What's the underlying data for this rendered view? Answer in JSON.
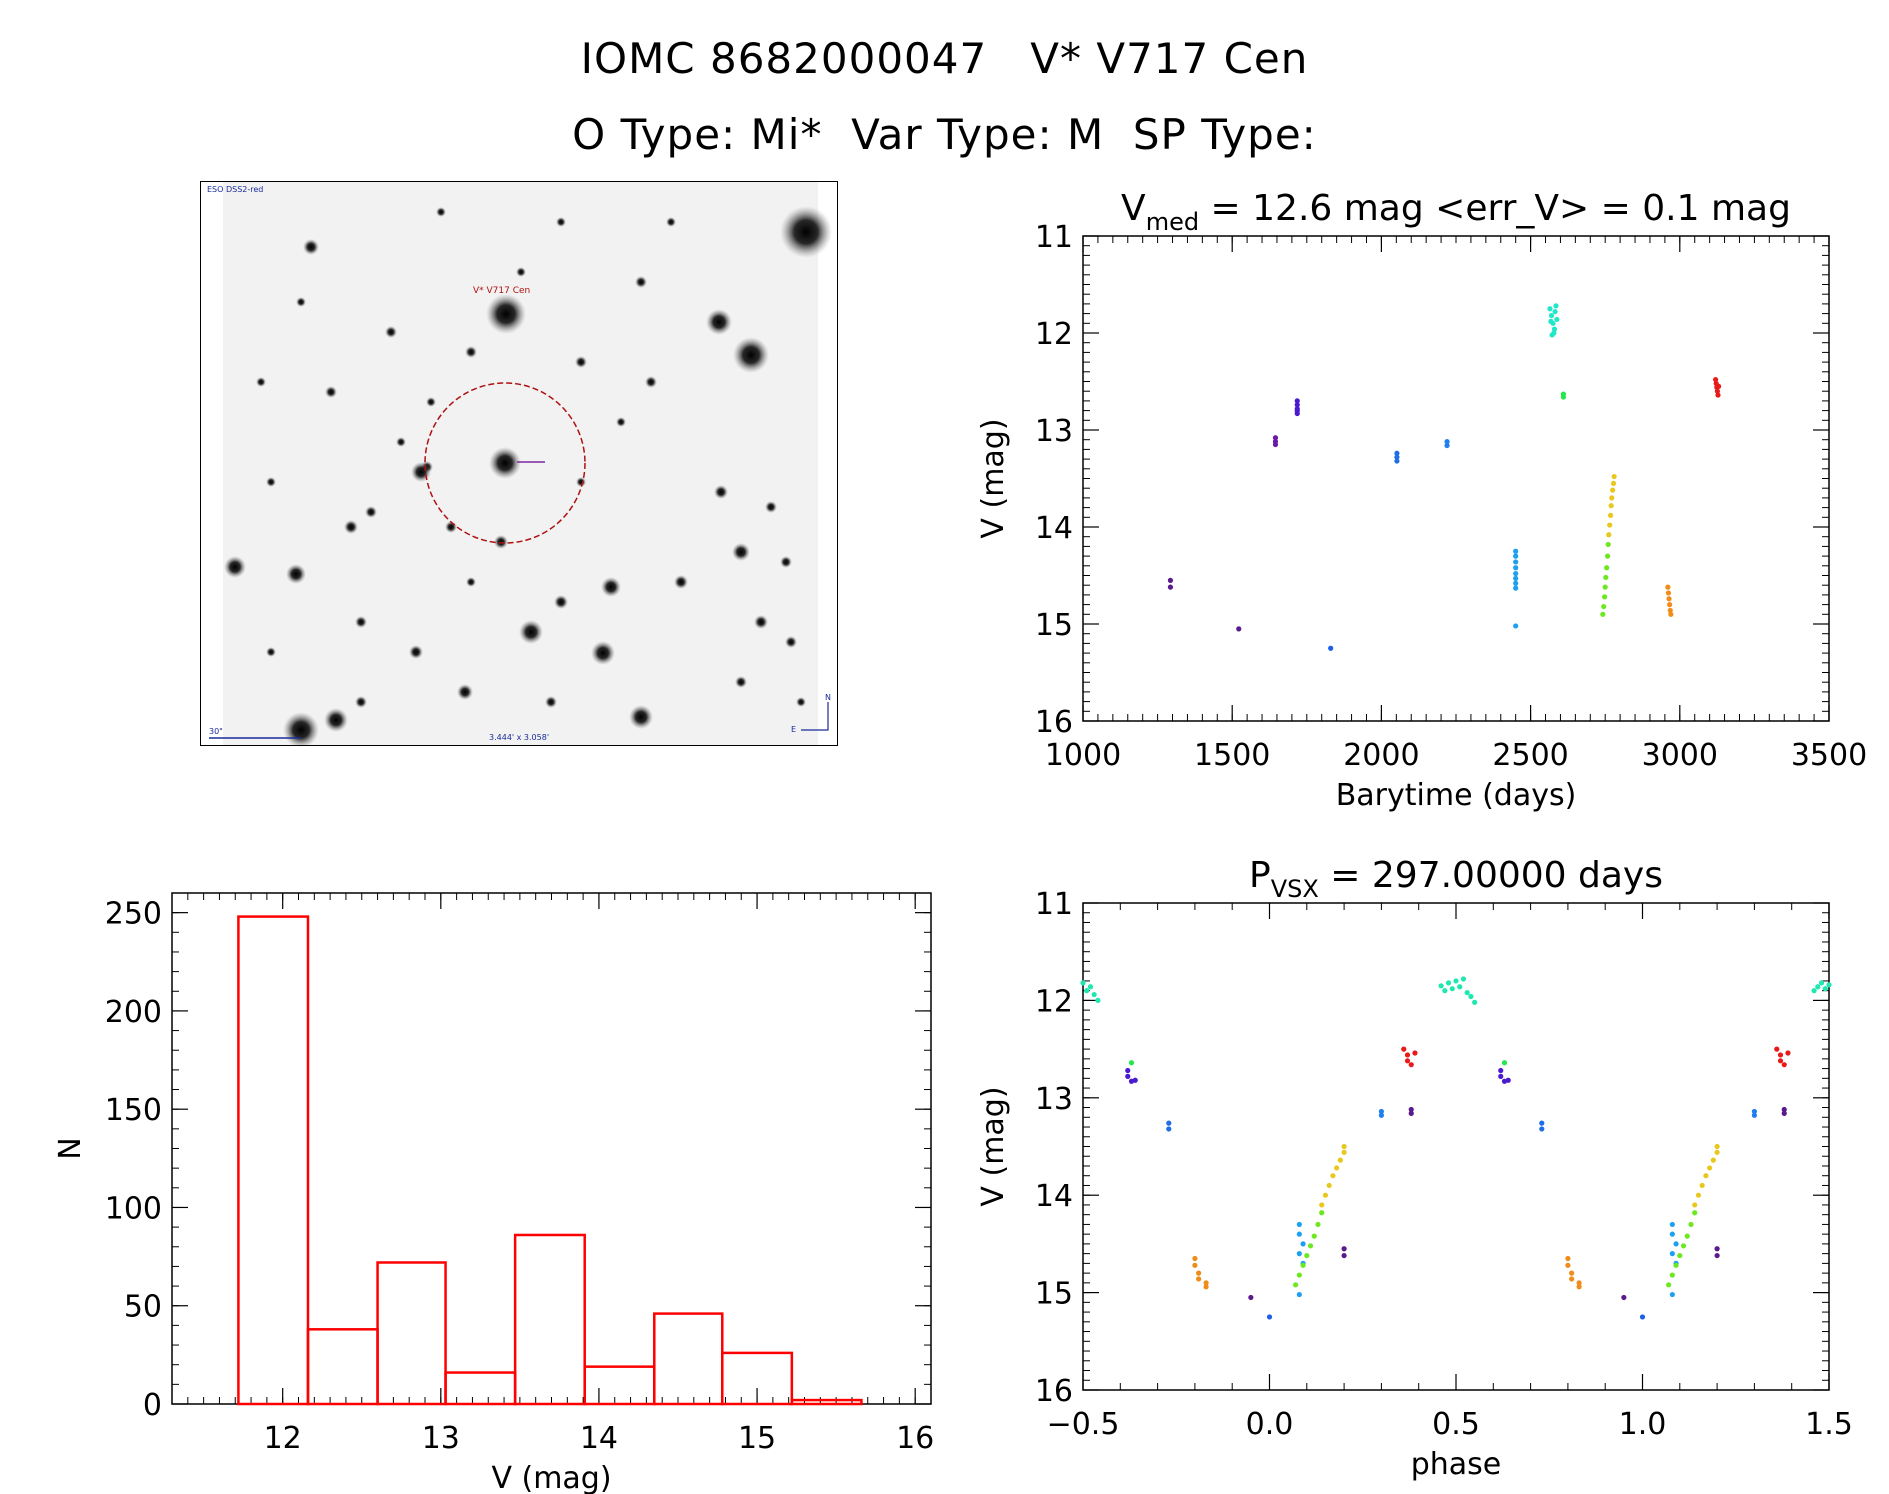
{
  "header": {
    "title_line1": "IOMC 8682000047   V* V717 Cen",
    "title_line2": "O Type: Mi*  Var Type: M  SP Type:"
  },
  "sky_image": {
    "survey_label": "ESO DSS2-red",
    "target_label": "V* V717 Cen",
    "scale_label": "30\"",
    "fov_label": "3.444' x 3.058'",
    "compass_north": "N",
    "compass_east": "E"
  },
  "chart_data": [
    {
      "id": "lightcurve",
      "type": "scatter",
      "title_main": "V",
      "title_sub": "med",
      "title_rest": " = 12.6 mag <err_V> = 0.1 mag",
      "xlabel": "Barytime (days)",
      "ylabel": "V (mag)",
      "xlim": [
        1000,
        3500
      ],
      "ylim": [
        11,
        16
      ],
      "y_inverted": true,
      "xticks": [
        1000,
        1500,
        2000,
        2500,
        3000,
        3500
      ],
      "yticks": [
        11,
        12,
        13,
        14,
        15,
        16
      ],
      "groups": [
        {
          "color": "#5a1a8c",
          "points": [
            [
              1293,
              14.55
            ],
            [
              1293,
              14.62
            ]
          ]
        },
        {
          "color": "#5a1a8c",
          "points": [
            [
              1522,
              15.05
            ]
          ]
        },
        {
          "color": "#6a1aa8",
          "points": [
            [
              1645,
              13.08
            ],
            [
              1645,
              13.12
            ],
            [
              1645,
              13.15
            ]
          ]
        },
        {
          "color": "#4a1ad0",
          "points": [
            [
              1718,
              12.7
            ],
            [
              1718,
              12.74
            ],
            [
              1718,
              12.78
            ],
            [
              1718,
              12.8
            ],
            [
              1718,
              12.83
            ]
          ]
        },
        {
          "color": "#1f5ee8",
          "points": [
            [
              1830,
              15.25
            ]
          ]
        },
        {
          "color": "#1f6ee8",
          "points": [
            [
              2052,
              13.24
            ],
            [
              2052,
              13.28
            ],
            [
              2052,
              13.32
            ]
          ]
        },
        {
          "color": "#1f7ef0",
          "points": [
            [
              2220,
              13.12
            ],
            [
              2220,
              13.16
            ]
          ]
        },
        {
          "color": "#1ea0f0",
          "points": [
            [
              2450,
              14.25
            ],
            [
              2450,
              14.3
            ],
            [
              2450,
              14.36
            ],
            [
              2450,
              14.42
            ],
            [
              2450,
              14.48
            ],
            [
              2450,
              14.53
            ],
            [
              2450,
              14.58
            ],
            [
              2450,
              14.63
            ],
            [
              2450,
              15.02
            ]
          ]
        },
        {
          "color": "#1ee8c8",
          "points": [
            [
              2565,
              11.75
            ],
            [
              2570,
              11.82
            ],
            [
              2575,
              11.9
            ],
            [
              2580,
              11.96
            ],
            [
              2585,
              11.72
            ],
            [
              2568,
              11.88
            ],
            [
              2578,
              12.0
            ],
            [
              2582,
              11.78
            ],
            [
              2572,
              12.02
            ],
            [
              2588,
              11.86
            ]
          ]
        },
        {
          "color": "#22e84a",
          "points": [
            [
              2610,
              12.63
            ],
            [
              2610,
              12.66
            ]
          ]
        },
        {
          "color": "#6ee81e",
          "points": [
            [
              2742,
              14.9
            ],
            [
              2745,
              14.82
            ],
            [
              2748,
              14.72
            ],
            [
              2750,
              14.62
            ],
            [
              2752,
              14.52
            ],
            [
              2755,
              14.42
            ],
            [
              2758,
              14.3
            ],
            [
              2760,
              14.18
            ]
          ]
        },
        {
          "color": "#e8c81e",
          "points": [
            [
              2762,
              14.08
            ],
            [
              2765,
              13.98
            ],
            [
              2768,
              13.88
            ],
            [
              2770,
              13.78
            ],
            [
              2772,
              13.7
            ],
            [
              2775,
              13.62
            ],
            [
              2778,
              13.55
            ],
            [
              2780,
              13.48
            ]
          ]
        },
        {
          "color": "#f08c1a",
          "points": [
            [
              2960,
              14.62
            ],
            [
              2962,
              14.68
            ],
            [
              2964,
              14.74
            ],
            [
              2966,
              14.8
            ],
            [
              2968,
              14.86
            ],
            [
              2970,
              14.9
            ]
          ]
        },
        {
          "color": "#e81a1a",
          "points": [
            [
              3120,
              12.48
            ],
            [
              3122,
              12.52
            ],
            [
              3124,
              12.56
            ],
            [
              3126,
              12.6
            ],
            [
              3128,
              12.64
            ],
            [
              3130,
              12.55
            ]
          ]
        }
      ]
    },
    {
      "id": "histogram",
      "type": "bar",
      "xlabel": "V (mag)",
      "ylabel": "N",
      "xlim": [
        11.3,
        16.1
      ],
      "ylim": [
        0,
        260
      ],
      "xticks": [
        12,
        13,
        14,
        15,
        16
      ],
      "yticks": [
        0,
        50,
        100,
        150,
        200,
        250
      ],
      "bins": [
        {
          "x0": 11.72,
          "x1": 12.16,
          "n": 248
        },
        {
          "x0": 12.16,
          "x1": 12.6,
          "n": 38
        },
        {
          "x0": 12.6,
          "x1": 13.03,
          "n": 72
        },
        {
          "x0": 13.03,
          "x1": 13.47,
          "n": 16
        },
        {
          "x0": 13.47,
          "x1": 13.91,
          "n": 86
        },
        {
          "x0": 13.91,
          "x1": 14.35,
          "n": 19
        },
        {
          "x0": 14.35,
          "x1": 14.78,
          "n": 46
        },
        {
          "x0": 14.78,
          "x1": 15.22,
          "n": 26
        },
        {
          "x0": 15.22,
          "x1": 15.66,
          "n": 2
        }
      ],
      "color": "#ff0000"
    },
    {
      "id": "phased",
      "type": "scatter",
      "title_main": "P",
      "title_sub": "VSX",
      "title_rest": " = 297.00000 days",
      "xlabel": "phase",
      "ylabel": "V (mag)",
      "xlim": [
        -0.5,
        1.5
      ],
      "ylim": [
        11,
        16
      ],
      "y_inverted": true,
      "xticks": [
        -0.5,
        0.0,
        0.5,
        1.0,
        1.5
      ],
      "yticks": [
        11,
        12,
        13,
        14,
        15,
        16
      ],
      "xtick_labels": [
        "−0.5",
        "0.0",
        "0.5",
        "1.0",
        "1.5"
      ],
      "groups": [
        {
          "color": "#1ee8b0",
          "points": [
            [
              0.46,
              11.85
            ],
            [
              0.47,
              11.9
            ],
            [
              0.48,
              11.82
            ],
            [
              0.49,
              11.88
            ],
            [
              0.5,
              11.8
            ],
            [
              0.51,
              11.86
            ],
            [
              0.52,
              11.78
            ],
            [
              0.53,
              11.92
            ],
            [
              0.54,
              11.96
            ],
            [
              0.55,
              12.02
            ],
            [
              -0.5,
              11.82
            ],
            [
              -0.49,
              11.9
            ],
            [
              -0.48,
              11.86
            ],
            [
              -0.47,
              11.94
            ],
            [
              -0.46,
              12.0
            ],
            [
              1.46,
              11.9
            ],
            [
              1.47,
              11.86
            ],
            [
              1.48,
              11.82
            ],
            [
              1.49,
              11.88
            ],
            [
              1.5,
              11.84
            ]
          ]
        },
        {
          "color": "#22e84a",
          "points": [
            [
              -0.37,
              12.64
            ],
            [
              0.63,
              12.64
            ]
          ]
        },
        {
          "color": "#4a1ad0",
          "points": [
            [
              -0.38,
              12.72
            ],
            [
              -0.38,
              12.78
            ],
            [
              -0.37,
              12.83
            ],
            [
              -0.36,
              12.82
            ],
            [
              0.62,
              12.72
            ],
            [
              0.62,
              12.78
            ],
            [
              0.63,
              12.83
            ],
            [
              0.64,
              12.82
            ]
          ]
        },
        {
          "color": "#1f6ee8",
          "points": [
            [
              -0.27,
              13.26
            ],
            [
              -0.27,
              13.32
            ],
            [
              0.73,
              13.26
            ],
            [
              0.73,
              13.32
            ]
          ]
        },
        {
          "color": "#f08c1a",
          "points": [
            [
              -0.2,
              14.65
            ],
            [
              -0.2,
              14.72
            ],
            [
              -0.19,
              14.8
            ],
            [
              -0.19,
              14.86
            ],
            [
              -0.17,
              14.9
            ],
            [
              -0.17,
              14.94
            ],
            [
              0.8,
              14.65
            ],
            [
              0.8,
              14.72
            ],
            [
              0.81,
              14.8
            ],
            [
              0.81,
              14.86
            ],
            [
              0.83,
              14.9
            ],
            [
              0.83,
              14.94
            ]
          ]
        },
        {
          "color": "#5a1a8c",
          "points": [
            [
              -0.05,
              15.05
            ],
            [
              0.95,
              15.05
            ],
            [
              0.2,
              14.55
            ],
            [
              0.2,
              14.62
            ],
            [
              1.2,
              14.55
            ],
            [
              1.2,
              14.62
            ],
            [
              0.38,
              13.12
            ],
            [
              0.38,
              13.16
            ],
            [
              1.38,
              13.12
            ],
            [
              1.38,
              13.16
            ]
          ]
        },
        {
          "color": "#1f5ee8",
          "points": [
            [
              0.0,
              15.25
            ],
            [
              1.0,
              15.25
            ]
          ]
        },
        {
          "color": "#1f7ef0",
          "points": [
            [
              0.3,
              13.14
            ],
            [
              0.3,
              13.18
            ],
            [
              1.3,
              13.14
            ],
            [
              1.3,
              13.18
            ]
          ]
        },
        {
          "color": "#1ea0f0",
          "points": [
            [
              0.08,
              14.3
            ],
            [
              0.08,
              14.4
            ],
            [
              0.09,
              14.5
            ],
            [
              0.08,
              14.6
            ],
            [
              0.09,
              14.7
            ],
            [
              0.08,
              15.02
            ],
            [
              1.08,
              14.3
            ],
            [
              1.08,
              14.4
            ],
            [
              1.09,
              14.5
            ],
            [
              1.08,
              14.6
            ],
            [
              1.09,
              14.7
            ],
            [
              1.08,
              15.02
            ]
          ]
        },
        {
          "color": "#6ee81e",
          "points": [
            [
              0.07,
              14.92
            ],
            [
              0.08,
              14.82
            ],
            [
              0.09,
              14.72
            ],
            [
              0.1,
              14.62
            ],
            [
              0.11,
              14.52
            ],
            [
              0.12,
              14.42
            ],
            [
              0.13,
              14.3
            ],
            [
              0.14,
              14.18
            ],
            [
              1.07,
              14.92
            ],
            [
              1.08,
              14.82
            ],
            [
              1.09,
              14.72
            ],
            [
              1.1,
              14.62
            ],
            [
              1.11,
              14.52
            ],
            [
              1.12,
              14.42
            ],
            [
              1.13,
              14.3
            ],
            [
              1.14,
              14.18
            ]
          ]
        },
        {
          "color": "#e8c81e",
          "points": [
            [
              0.14,
              14.1
            ],
            [
              0.15,
              14.0
            ],
            [
              0.16,
              13.9
            ],
            [
              0.17,
              13.8
            ],
            [
              0.18,
              13.72
            ],
            [
              0.19,
              13.64
            ],
            [
              0.2,
              13.56
            ],
            [
              0.2,
              13.5
            ],
            [
              1.14,
              14.1
            ],
            [
              1.15,
              14.0
            ],
            [
              1.16,
              13.9
            ],
            [
              1.17,
              13.8
            ],
            [
              1.18,
              13.72
            ],
            [
              1.19,
              13.64
            ],
            [
              1.2,
              13.56
            ],
            [
              1.2,
              13.5
            ]
          ]
        },
        {
          "color": "#e81a1a",
          "points": [
            [
              0.36,
              12.5
            ],
            [
              0.37,
              12.56
            ],
            [
              0.37,
              12.62
            ],
            [
              0.38,
              12.66
            ],
            [
              0.39,
              12.54
            ],
            [
              1.36,
              12.5
            ],
            [
              1.37,
              12.56
            ],
            [
              1.37,
              12.62
            ],
            [
              1.38,
              12.66
            ],
            [
              1.39,
              12.54
            ]
          ]
        }
      ]
    }
  ]
}
